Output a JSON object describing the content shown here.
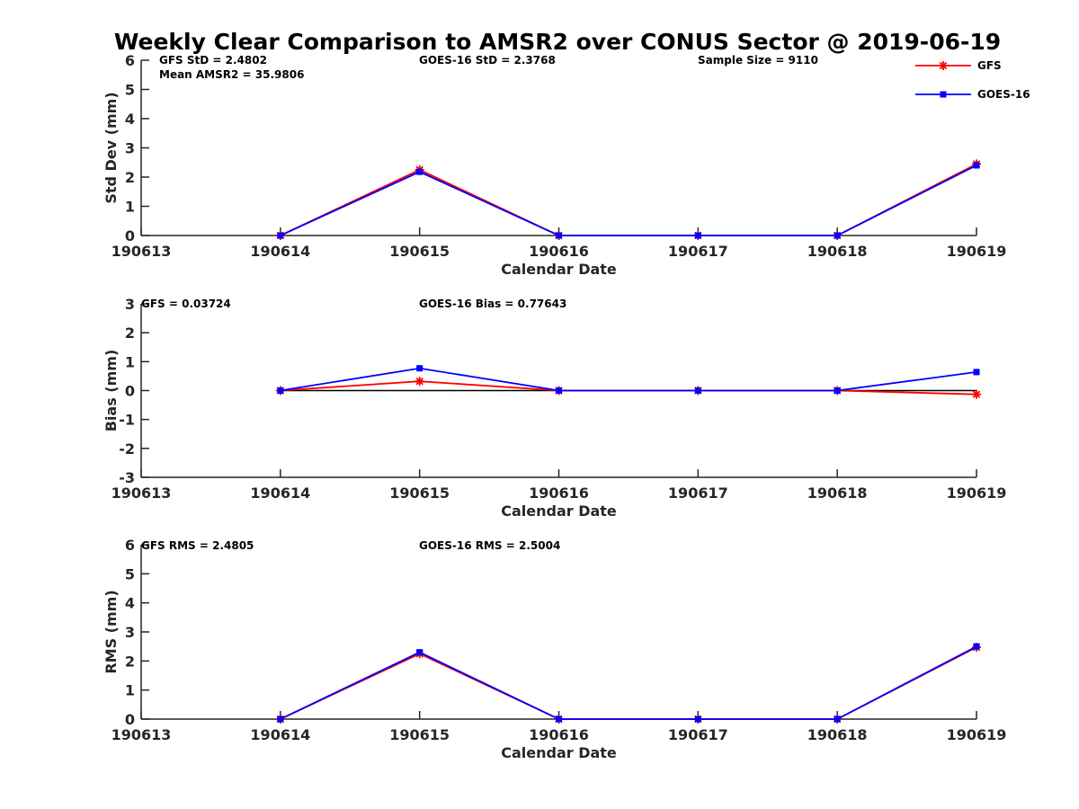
{
  "title": "Weekly Clear Comparison to AMSR2 over CONUS Sector @ 2019-06-19",
  "legend": {
    "placement": "top-right",
    "items": [
      {
        "name": "GFS",
        "color": "#ff0000",
        "marker": "asterisk"
      },
      {
        "name": "GOES-16",
        "color": "#0000ff",
        "marker": "square"
      }
    ]
  },
  "chart_data": [
    {
      "type": "line",
      "xlabel": "Calendar Date",
      "ylabel": "Std Dev (mm)",
      "x_ticks": [
        "190613",
        "190614",
        "190615",
        "190616",
        "190617",
        "190618",
        "190619"
      ],
      "y_ticks": [
        "0",
        "1",
        "2",
        "3",
        "4",
        "5",
        "6"
      ],
      "ylim": [
        0,
        6
      ],
      "zero_line": false,
      "annotations": [
        "GFS StD = 2.4802",
        "Mean AMSR2 = 35.9806",
        "GOES-16 StD = 2.3768",
        "Sample Size = 9110"
      ],
      "series": [
        {
          "name": "GFS",
          "color": "#ff0000",
          "x": [
            "190614",
            "190615",
            "190616",
            "190617",
            "190618",
            "190619"
          ],
          "values": [
            0,
            2.25,
            0,
            0,
            0,
            2.45
          ]
        },
        {
          "name": "GOES-16",
          "color": "#0000ff",
          "x": [
            "190614",
            "190615",
            "190616",
            "190617",
            "190618",
            "190619"
          ],
          "values": [
            0,
            2.18,
            0,
            0,
            0,
            2.4
          ]
        }
      ]
    },
    {
      "type": "line",
      "xlabel": "Calendar Date",
      "ylabel": "Bias (mm)",
      "x_ticks": [
        "190613",
        "190614",
        "190615",
        "190616",
        "190617",
        "190618",
        "190619"
      ],
      "y_ticks": [
        "-3",
        "-2",
        "-1",
        "0",
        "1",
        "2",
        "3"
      ],
      "ylim": [
        -3,
        3
      ],
      "zero_line": true,
      "annotations": [
        "GFS = 0.03724",
        "GOES-16 Bias  = 0.77643"
      ],
      "series": [
        {
          "name": "GFS",
          "color": "#ff0000",
          "x": [
            "190614",
            "190615",
            "190616",
            "190617",
            "190618",
            "190619"
          ],
          "values": [
            0,
            0.32,
            0,
            0,
            0,
            -0.13
          ]
        },
        {
          "name": "GOES-16",
          "color": "#0000ff",
          "x": [
            "190614",
            "190615",
            "190616",
            "190617",
            "190618",
            "190619"
          ],
          "values": [
            0,
            0.77,
            0,
            0,
            0,
            0.64
          ]
        }
      ]
    },
    {
      "type": "line",
      "xlabel": "Calendar Date",
      "ylabel": "RMS (mm)",
      "x_ticks": [
        "190613",
        "190614",
        "190615",
        "190616",
        "190617",
        "190618",
        "190619"
      ],
      "y_ticks": [
        "0",
        "1",
        "2",
        "3",
        "4",
        "5",
        "6"
      ],
      "ylim": [
        0,
        6
      ],
      "zero_line": false,
      "annotations": [
        "GFS RMS = 2.4805",
        "GOES-16 RMS = 2.5004"
      ],
      "series": [
        {
          "name": "GFS",
          "color": "#ff0000",
          "x": [
            "190614",
            "190615",
            "190616",
            "190617",
            "190618",
            "190619"
          ],
          "values": [
            0,
            2.25,
            0,
            0,
            0,
            2.47
          ]
        },
        {
          "name": "GOES-16",
          "color": "#0000ff",
          "x": [
            "190614",
            "190615",
            "190616",
            "190617",
            "190618",
            "190619"
          ],
          "values": [
            0,
            2.3,
            0,
            0,
            0,
            2.5
          ]
        }
      ]
    }
  ]
}
